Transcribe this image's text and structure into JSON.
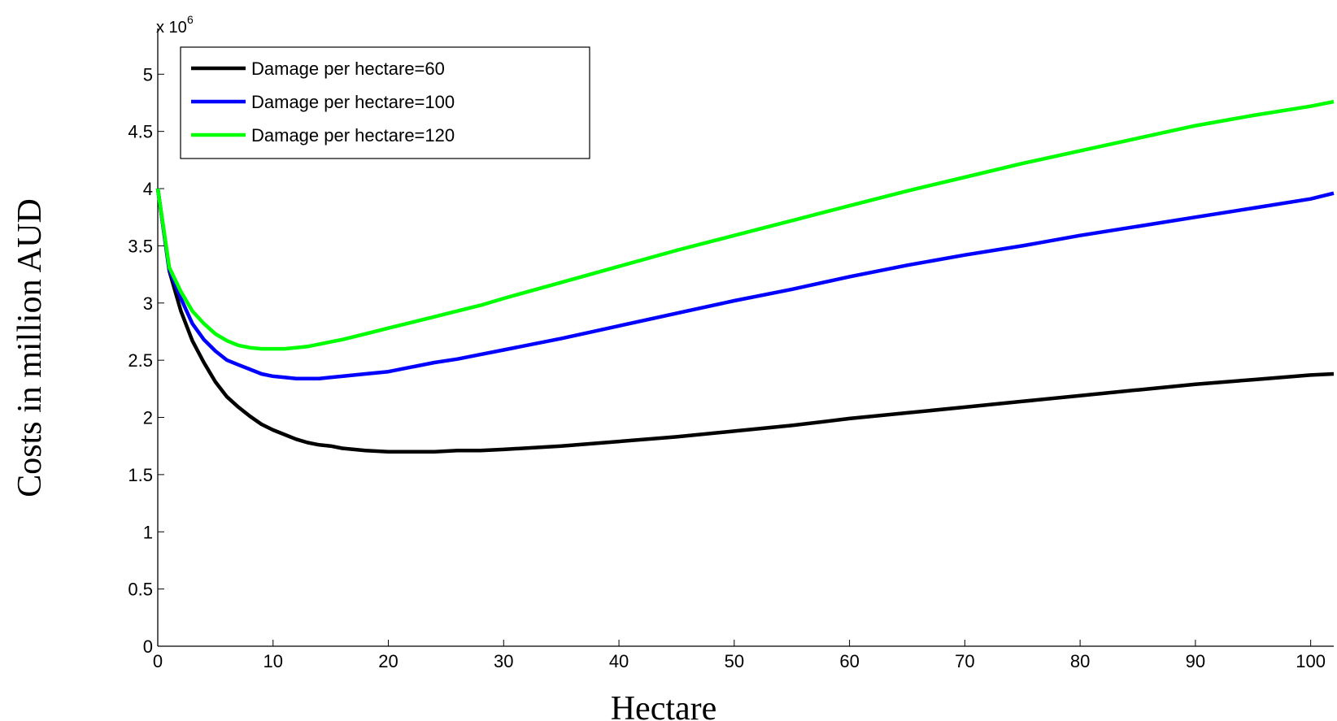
{
  "chart_data": {
    "type": "line",
    "xlabel": "Hectare",
    "ylabel": "Costs in million AUD",
    "y_multiplier": "x 10",
    "y_multiplier_exp": "6",
    "xlim": [
      0,
      102
    ],
    "ylim": [
      0,
      5.4
    ],
    "xticks": [
      0,
      10,
      20,
      30,
      40,
      50,
      60,
      70,
      80,
      90,
      100
    ],
    "yticks": [
      0,
      0.5,
      1,
      1.5,
      2,
      2.5,
      3,
      3.5,
      4,
      4.5,
      5
    ],
    "grid": false,
    "legend_position": "top-left",
    "series": [
      {
        "name": "Damage per hectare=60",
        "color": "#000000",
        "x": [
          0,
          1,
          2,
          3,
          4,
          5,
          6,
          7,
          8,
          9,
          10,
          11,
          12,
          13,
          14,
          15,
          16,
          18,
          20,
          22,
          24,
          26,
          28,
          30,
          35,
          40,
          45,
          50,
          55,
          60,
          65,
          70,
          75,
          80,
          85,
          90,
          95,
          100,
          102
        ],
        "y": [
          4.0,
          3.28,
          2.93,
          2.67,
          2.48,
          2.31,
          2.18,
          2.09,
          2.01,
          1.94,
          1.89,
          1.85,
          1.81,
          1.78,
          1.76,
          1.75,
          1.73,
          1.71,
          1.7,
          1.7,
          1.7,
          1.71,
          1.71,
          1.72,
          1.75,
          1.79,
          1.83,
          1.88,
          1.93,
          1.99,
          2.04,
          2.09,
          2.14,
          2.19,
          2.24,
          2.29,
          2.33,
          2.37,
          2.38
        ]
      },
      {
        "name": "Damage per hectare=100",
        "color": "#0000ff",
        "x": [
          0,
          1,
          2,
          3,
          4,
          5,
          6,
          7,
          8,
          9,
          10,
          11,
          12,
          13,
          14,
          15,
          16,
          18,
          20,
          22,
          24,
          26,
          28,
          30,
          35,
          40,
          45,
          50,
          55,
          60,
          65,
          70,
          75,
          80,
          85,
          90,
          95,
          100,
          102
        ],
        "y": [
          4.0,
          3.29,
          3.04,
          2.82,
          2.68,
          2.58,
          2.5,
          2.46,
          2.42,
          2.38,
          2.36,
          2.35,
          2.34,
          2.34,
          2.34,
          2.35,
          2.36,
          2.38,
          2.4,
          2.44,
          2.48,
          2.51,
          2.55,
          2.59,
          2.69,
          2.8,
          2.91,
          3.02,
          3.12,
          3.23,
          3.33,
          3.42,
          3.5,
          3.59,
          3.67,
          3.75,
          3.83,
          3.91,
          3.96
        ]
      },
      {
        "name": "Damage per hectare=120",
        "color": "#00ff00",
        "x": [
          0,
          1,
          2,
          3,
          4,
          5,
          6,
          7,
          8,
          9,
          10,
          11,
          12,
          13,
          14,
          15,
          16,
          18,
          20,
          22,
          24,
          26,
          28,
          30,
          35,
          40,
          45,
          50,
          55,
          60,
          65,
          70,
          75,
          80,
          85,
          90,
          95,
          100,
          102
        ],
        "y": [
          4.0,
          3.31,
          3.1,
          2.93,
          2.82,
          2.73,
          2.67,
          2.63,
          2.61,
          2.6,
          2.6,
          2.6,
          2.61,
          2.62,
          2.64,
          2.66,
          2.68,
          2.73,
          2.78,
          2.83,
          2.88,
          2.93,
          2.98,
          3.04,
          3.18,
          3.32,
          3.46,
          3.59,
          3.72,
          3.85,
          3.98,
          4.1,
          4.22,
          4.33,
          4.44,
          4.55,
          4.64,
          4.72,
          4.76
        ]
      }
    ]
  }
}
